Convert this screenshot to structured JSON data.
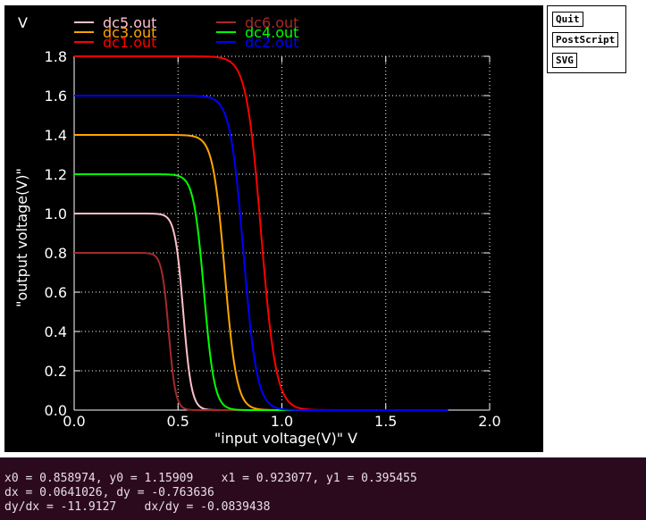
{
  "buttons": {
    "quit": "Quit",
    "postscript": "PostScript",
    "svg": "SVG"
  },
  "readout": {
    "line1": "x0 = 0.858974, y0 = 1.15909    x1 = 0.923077, y1 = 0.395455",
    "line2": "dx = 0.0641026, dy = -0.763636",
    "line3": "dy/dx = -11.9127    dx/dy = -0.0839438"
  },
  "chart_data": {
    "type": "line",
    "corner_label": "V",
    "xlabel": "\"input voltage(V)\"  V",
    "ylabel": "\"output voltage(V)\"",
    "xlim": [
      0,
      2.0
    ],
    "ylim": [
      0,
      1.8
    ],
    "x_ticks": [
      "0.0",
      "0.5",
      "1.0",
      "1.5",
      "2.0"
    ],
    "y_ticks": [
      "0.0",
      "0.2",
      "0.4",
      "0.6",
      "0.8",
      "1.0",
      "1.2",
      "1.4",
      "1.6",
      "1.8"
    ],
    "grid": true,
    "legend_placement": "top",
    "series": [
      {
        "name": "dc5.out",
        "color": "#ffc0cb",
        "vdd": 1.0,
        "vm": 0.525,
        "k": 50,
        "points": [
          [
            0,
            1.0
          ],
          [
            0.45,
            0.99
          ],
          [
            0.5,
            0.93
          ],
          [
            0.525,
            0.5
          ],
          [
            0.55,
            0.08
          ],
          [
            0.6,
            0.01
          ],
          [
            1.8,
            0.0
          ]
        ]
      },
      {
        "name": "dc6.out",
        "color": "#a52a2a",
        "vdd": 0.8,
        "vm": 0.455,
        "k": 60,
        "points": [
          [
            0,
            0.8
          ],
          [
            0.42,
            0.79
          ],
          [
            0.45,
            0.6
          ],
          [
            0.48,
            0.1
          ],
          [
            0.52,
            0.0
          ],
          [
            1.8,
            0.0
          ]
        ]
      },
      {
        "name": "dc3.out",
        "color": "#ffa500",
        "vdd": 1.4,
        "vm": 0.725,
        "k": 35,
        "points": [
          [
            0,
            1.4
          ],
          [
            0.6,
            1.39
          ],
          [
            0.68,
            1.2
          ],
          [
            0.725,
            0.7
          ],
          [
            0.78,
            0.1
          ],
          [
            0.85,
            0.02
          ],
          [
            1.8,
            0.0
          ]
        ]
      },
      {
        "name": "dc4.out",
        "color": "#00ff00",
        "vdd": 1.2,
        "vm": 0.625,
        "k": 40,
        "points": [
          [
            0,
            1.2
          ],
          [
            0.52,
            1.19
          ],
          [
            0.6,
            0.95
          ],
          [
            0.625,
            0.6
          ],
          [
            0.68,
            0.1
          ],
          [
            0.75,
            0.01
          ],
          [
            1.8,
            0.0
          ]
        ]
      },
      {
        "name": "dc1.out",
        "color": "#ff0000",
        "vdd": 1.8,
        "vm": 0.9,
        "k": 28,
        "points": [
          [
            0,
            1.8
          ],
          [
            0.7,
            1.79
          ],
          [
            0.82,
            1.5
          ],
          [
            0.9,
            0.9
          ],
          [
            0.97,
            0.2
          ],
          [
            1.1,
            0.03
          ],
          [
            1.3,
            0.0
          ],
          [
            1.8,
            0.0
          ]
        ]
      },
      {
        "name": "dc2.out",
        "color": "#0000ff",
        "vdd": 1.6,
        "vm": 0.815,
        "k": 31,
        "points": [
          [
            0,
            1.6
          ],
          [
            0.65,
            1.59
          ],
          [
            0.76,
            1.3
          ],
          [
            0.815,
            0.8
          ],
          [
            0.88,
            0.15
          ],
          [
            1.0,
            0.02
          ],
          [
            1.8,
            0.0
          ]
        ]
      }
    ]
  }
}
